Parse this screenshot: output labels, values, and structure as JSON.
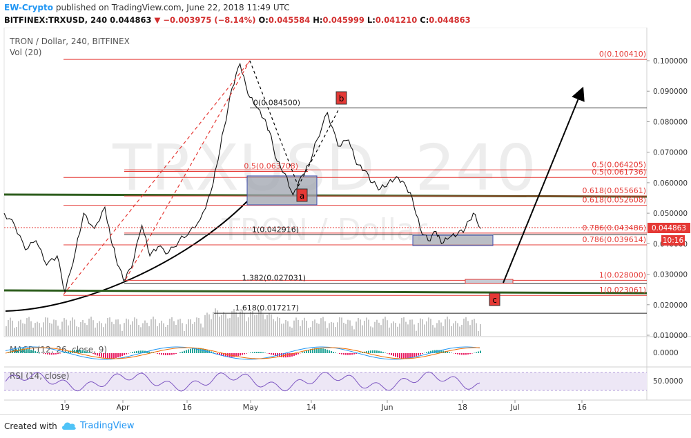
{
  "header": {
    "author": "EW-Crypto",
    "published_text": "published on TradingView.com, June 22, 2018 11:49 UTC",
    "symbol_line": "BITFINEX:TRXUSD, 240",
    "last": "0.044863",
    "change": "−0.003975 (−8.14%)",
    "o_label": "O:",
    "o": "0.045584",
    "h_label": "H:",
    "h": "0.045999",
    "l_label": "L:",
    "l": "0.041210",
    "c_label": "C:",
    "c": "0.044863"
  },
  "chart_data": {
    "type": "line",
    "title": "TRON / Dollar, 240, BITFINEX",
    "subtitle": "Vol (20)",
    "watermark_symbol": "TRXUSD, 240",
    "watermark_name": "TRON / Dollar",
    "x_ticks": [
      "19",
      "Apr",
      "16",
      "May",
      "14",
      "Jun",
      "18",
      "Jul",
      "16"
    ],
    "y_ticks": [
      "0.100000",
      "0.090000",
      "0.080000",
      "0.070000",
      "0.060000",
      "0.050000",
      "0.040000",
      "0.030000",
      "0.020000",
      "0.010000"
    ],
    "ylim": [
      0.008,
      0.108
    ],
    "last_price_label": "0.044863",
    "countdown_label": "10:16",
    "price_series": {
      "name": "TRXUSD",
      "color": "#000000",
      "x": [
        0,
        4,
        8,
        12,
        16,
        20,
        23,
        27,
        30,
        34,
        38,
        40,
        42,
        45,
        48,
        52,
        55,
        58,
        62,
        66,
        70,
        74,
        78,
        80,
        83,
        86,
        89,
        92,
        95,
        98,
        100,
        103,
        106,
        109,
        112,
        115,
        118,
        122,
        126,
        130,
        133,
        136,
        139,
        142,
        145,
        148,
        151,
        154,
        157,
        160,
        163,
        165,
        168,
        171,
        174,
        177,
        180
      ],
      "y": [
        0.05,
        0.046,
        0.038,
        0.041,
        0.033,
        0.036,
        0.024,
        0.038,
        0.05,
        0.045,
        0.052,
        0.043,
        0.036,
        0.028,
        0.032,
        0.046,
        0.036,
        0.039,
        0.037,
        0.041,
        0.044,
        0.048,
        0.057,
        0.065,
        0.078,
        0.091,
        0.099,
        0.089,
        0.085,
        0.081,
        0.077,
        0.067,
        0.063,
        0.056,
        0.062,
        0.066,
        0.074,
        0.083,
        0.072,
        0.074,
        0.066,
        0.064,
        0.06,
        0.058,
        0.06,
        0.062,
        0.06,
        0.055,
        0.045,
        0.041,
        0.044,
        0.04,
        0.042,
        0.043,
        0.045,
        0.05,
        0.045
      ]
    },
    "fib_levels": [
      {
        "label": "0(0.100410)",
        "value": 0.10041,
        "color": "#e53935"
      },
      {
        "label": "0(0.084500)",
        "value": 0.0845,
        "color": "#212121"
      },
      {
        "label": "0.5(0.064205)",
        "value": 0.064205,
        "color": "#e53935"
      },
      {
        "label": "0.5(0.063708)",
        "value": 0.063708,
        "color": "#e53935"
      },
      {
        "label": "0.5(0.061736)",
        "value": 0.061736,
        "color": "#e53935"
      },
      {
        "label": "0.618(0.055661)",
        "value": 0.055661,
        "color": "#e53935"
      },
      {
        "label": "0.618(0.052608)",
        "value": 0.052608,
        "color": "#e53935"
      },
      {
        "label": "0.786(0.043486)",
        "value": 0.043486,
        "color": "#e53935"
      },
      {
        "label": "1(0.042916)",
        "value": 0.042916,
        "color": "#212121"
      },
      {
        "label": "0.786(0.039614)",
        "value": 0.039614,
        "color": "#e53935"
      },
      {
        "label": "1(0.028000)",
        "value": 0.028,
        "color": "#e53935"
      },
      {
        "label": "1.382(0.027031)",
        "value": 0.027031,
        "color": "#212121"
      },
      {
        "label": "1(0.023061)",
        "value": 0.023061,
        "color": "#e53935"
      },
      {
        "label": "1.618(0.017217)",
        "value": 0.017217,
        "color": "#212121"
      }
    ],
    "wave_labels": [
      "a",
      "b",
      "c"
    ],
    "indicators": [
      {
        "name": "MACD (12, 26, close, 9)",
        "y_tick": "0.0000"
      },
      {
        "name": "RSI (14, close)",
        "y_tick": "50.0000"
      }
    ],
    "colors": {
      "support_line": "#2e5e1e",
      "fib_red": "#e53935",
      "volume": "#c8c8c8",
      "rsi_line": "#7e57c2",
      "rsi_band": "#ede7f6",
      "label_box": "#e53935"
    }
  },
  "footer": {
    "created_with": "Created with",
    "brand": "TradingView"
  }
}
